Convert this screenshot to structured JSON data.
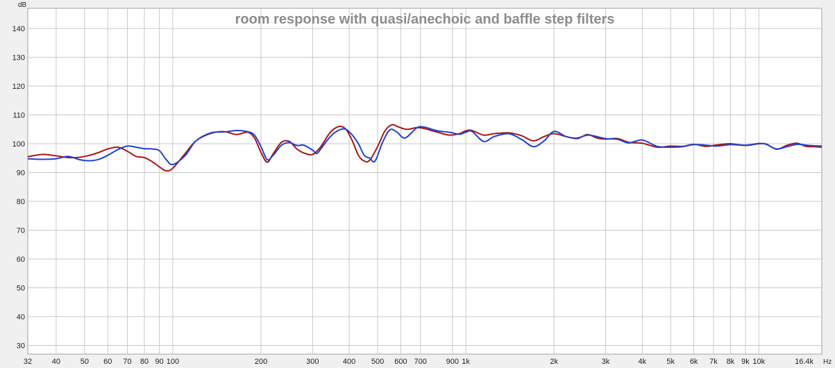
{
  "chart_data": {
    "type": "line",
    "title": "room response with quasi/anechoic and baffle step filters",
    "ylabel": "dB",
    "xunit": "Hz",
    "xscale": "log",
    "xlim": [
      32,
      16400
    ],
    "ylim": [
      27,
      147
    ],
    "grid": true,
    "yticks": [
      {
        "value": 30,
        "label": "30"
      },
      {
        "value": 40,
        "label": "40"
      },
      {
        "value": 50,
        "label": "50"
      },
      {
        "value": 60,
        "label": "60"
      },
      {
        "value": 70,
        "label": "70"
      },
      {
        "value": 80,
        "label": "80"
      },
      {
        "value": 90,
        "label": "90"
      },
      {
        "value": 100,
        "label": "100"
      },
      {
        "value": 110,
        "label": "110"
      },
      {
        "value": 120,
        "label": "120"
      },
      {
        "value": 130,
        "label": "130"
      },
      {
        "value": 140,
        "label": "140"
      }
    ],
    "xticks": [
      {
        "value": 32,
        "label": "32"
      },
      {
        "value": 40,
        "label": "40"
      },
      {
        "value": 50,
        "label": "50"
      },
      {
        "value": 60,
        "label": "60"
      },
      {
        "value": 70,
        "label": "70"
      },
      {
        "value": 80,
        "label": "80"
      },
      {
        "value": 90,
        "label": "90"
      },
      {
        "value": 100,
        "label": "100"
      },
      {
        "value": 200,
        "label": "200"
      },
      {
        "value": 300,
        "label": "300"
      },
      {
        "value": 400,
        "label": "400"
      },
      {
        "value": 500,
        "label": "500"
      },
      {
        "value": 600,
        "label": "600"
      },
      {
        "value": 700,
        "label": "700"
      },
      {
        "value": 900,
        "label": "900"
      },
      {
        "value": 1000,
        "label": "1k"
      },
      {
        "value": 2000,
        "label": "2k"
      },
      {
        "value": 3000,
        "label": "3k"
      },
      {
        "value": 4000,
        "label": "4k"
      },
      {
        "value": 5000,
        "label": "5k"
      },
      {
        "value": 6000,
        "label": "6k"
      },
      {
        "value": 7000,
        "label": "7k"
      },
      {
        "value": 8000,
        "label": "8k"
      },
      {
        "value": 9000,
        "label": "9k"
      },
      {
        "value": 10000,
        "label": "10k"
      },
      {
        "value": 16400,
        "label": "16.4k"
      }
    ],
    "series": [
      {
        "color": "#aa1414",
        "points": [
          [
            32,
            95.5
          ],
          [
            36,
            96.3
          ],
          [
            40,
            95.8
          ],
          [
            44,
            95.2
          ],
          [
            48,
            95.3
          ],
          [
            52,
            96
          ],
          [
            56,
            97
          ],
          [
            60,
            98.2
          ],
          [
            65,
            98.8
          ],
          [
            70,
            97.4
          ],
          [
            75,
            95.6
          ],
          [
            80,
            95.2
          ],
          [
            85,
            93.8
          ],
          [
            90,
            92
          ],
          [
            95,
            90.6
          ],
          [
            100,
            91.5
          ],
          [
            110,
            96.5
          ],
          [
            120,
            101
          ],
          [
            135,
            103.6
          ],
          [
            150,
            104.2
          ],
          [
            165,
            103.2
          ],
          [
            180,
            104
          ],
          [
            190,
            102
          ],
          [
            200,
            97
          ],
          [
            210,
            93.6
          ],
          [
            220,
            96.5
          ],
          [
            235,
            100.5
          ],
          [
            250,
            100.8
          ],
          [
            265,
            98.2
          ],
          [
            280,
            96.8
          ],
          [
            300,
            96.3
          ],
          [
            320,
            99
          ],
          [
            345,
            104
          ],
          [
            370,
            106
          ],
          [
            390,
            105
          ],
          [
            410,
            101
          ],
          [
            430,
            96
          ],
          [
            450,
            94
          ],
          [
            470,
            94.3
          ],
          [
            500,
            99
          ],
          [
            530,
            104.5
          ],
          [
            560,
            106.6
          ],
          [
            590,
            105.8
          ],
          [
            630,
            105
          ],
          [
            680,
            105.6
          ],
          [
            720,
            105.3
          ],
          [
            800,
            104
          ],
          [
            880,
            103
          ],
          [
            950,
            103.5
          ],
          [
            1000,
            104.5
          ],
          [
            1050,
            104.6
          ],
          [
            1150,
            103
          ],
          [
            1250,
            103.5
          ],
          [
            1400,
            103.8
          ],
          [
            1550,
            102.8
          ],
          [
            1700,
            101
          ],
          [
            1850,
            102.5
          ],
          [
            2000,
            103.5
          ],
          [
            2200,
            102.5
          ],
          [
            2400,
            101.8
          ],
          [
            2600,
            103.2
          ],
          [
            2800,
            102
          ],
          [
            3000,
            101.6
          ],
          [
            3300,
            101.8
          ],
          [
            3600,
            100.5
          ],
          [
            4000,
            100.2
          ],
          [
            4500,
            98.8
          ],
          [
            5000,
            99.2
          ],
          [
            5500,
            99.1
          ],
          [
            6000,
            99.8
          ],
          [
            6600,
            99.1
          ],
          [
            7200,
            99.6
          ],
          [
            8000,
            100
          ],
          [
            9000,
            99.4
          ],
          [
            10000,
            100
          ],
          [
            10600,
            99.9
          ],
          [
            11500,
            98.1
          ],
          [
            12500,
            99.5
          ],
          [
            13500,
            100.2
          ],
          [
            14500,
            99.1
          ],
          [
            15500,
            99
          ],
          [
            16400,
            98.8
          ]
        ]
      },
      {
        "color": "#1e41d2",
        "points": [
          [
            32,
            94.8
          ],
          [
            36,
            94.6
          ],
          [
            40,
            94.8
          ],
          [
            44,
            95.6
          ],
          [
            48,
            94.5
          ],
          [
            52,
            94.1
          ],
          [
            56,
            94.6
          ],
          [
            60,
            96
          ],
          [
            65,
            98
          ],
          [
            70,
            99.2
          ],
          [
            75,
            98.8
          ],
          [
            80,
            98.3
          ],
          [
            85,
            98.2
          ],
          [
            90,
            97.6
          ],
          [
            95,
            94.5
          ],
          [
            100,
            92.8
          ],
          [
            110,
            95.8
          ],
          [
            120,
            101
          ],
          [
            135,
            103.8
          ],
          [
            150,
            104.1
          ],
          [
            165,
            104.6
          ],
          [
            180,
            104.2
          ],
          [
            190,
            103
          ],
          [
            200,
            99
          ],
          [
            210,
            94.5
          ],
          [
            220,
            96
          ],
          [
            235,
            99.5
          ],
          [
            250,
            100.4
          ],
          [
            265,
            99.4
          ],
          [
            280,
            99.5
          ],
          [
            300,
            97.8
          ],
          [
            310,
            96.6
          ],
          [
            320,
            98.2
          ],
          [
            345,
            102.5
          ],
          [
            370,
            104.8
          ],
          [
            390,
            105
          ],
          [
            410,
            103
          ],
          [
            430,
            100
          ],
          [
            450,
            96
          ],
          [
            470,
            95
          ],
          [
            490,
            94
          ],
          [
            520,
            100.5
          ],
          [
            550,
            104.8
          ],
          [
            580,
            104.2
          ],
          [
            620,
            102
          ],
          [
            680,
            105.5
          ],
          [
            720,
            105.8
          ],
          [
            800,
            104.5
          ],
          [
            880,
            104
          ],
          [
            950,
            103.3
          ],
          [
            1000,
            104
          ],
          [
            1050,
            104.3
          ],
          [
            1150,
            100.8
          ],
          [
            1250,
            102.5
          ],
          [
            1400,
            103.5
          ],
          [
            1550,
            101.5
          ],
          [
            1700,
            99
          ],
          [
            1850,
            101
          ],
          [
            2000,
            104.3
          ],
          [
            2200,
            102.5
          ],
          [
            2400,
            102
          ],
          [
            2600,
            103
          ],
          [
            2800,
            102.5
          ],
          [
            3000,
            101.8
          ],
          [
            3300,
            101.5
          ],
          [
            3600,
            100.3
          ],
          [
            4000,
            101.3
          ],
          [
            4500,
            99.1
          ],
          [
            5000,
            98.8
          ],
          [
            5500,
            99
          ],
          [
            6000,
            99.7
          ],
          [
            6600,
            99.5
          ],
          [
            7200,
            99.2
          ],
          [
            8000,
            99.7
          ],
          [
            9000,
            99.5
          ],
          [
            10000,
            100.1
          ],
          [
            10600,
            99.8
          ],
          [
            11500,
            98.2
          ],
          [
            12500,
            99
          ],
          [
            13500,
            99.8
          ],
          [
            14500,
            99.5
          ],
          [
            15500,
            99.3
          ],
          [
            16400,
            99.2
          ]
        ]
      }
    ]
  }
}
